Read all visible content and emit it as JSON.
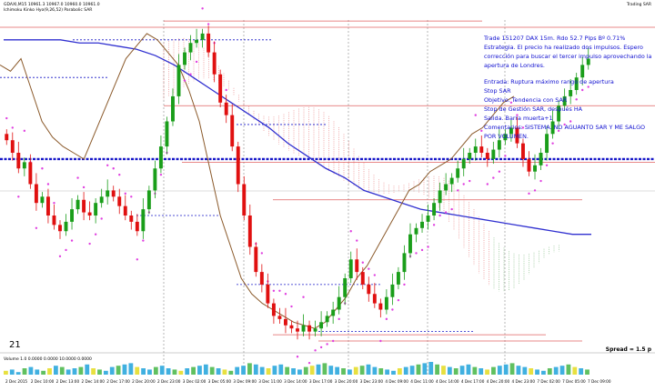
{
  "header": {
    "symbol_line": "GDAXI,M15  10961.3 10967.0 10960.0 10961.0",
    "indicator_line": "Ichimoku Kinko Hyo(9,26,52) Parabolic SAR",
    "right_tag": "Trading SAR"
  },
  "annotation": {
    "line1": "Trade 151207 DAX 15m. Rdo 52.7 Pips Bº 0.71%",
    "line2": "Estrategia. El precio ha realizado dos impulsos. Espero",
    "line3": "corrección para buscar el tercer impulso aprovechando la",
    "line4": "apertura de Londres.",
    "entry": "Entrada: Ruptura máximo rango de apertura",
    "stop": "Stop SAR",
    "objective": "Objetivo. Tendencia con SAR",
    "management": "Stop de Gestión SAR, después HA",
    "exit": "Salida. Barra muerta+1",
    "comments1": "Comentarios: SISTEMA. NO AGUANTO SAR Y ME SALGO",
    "comments2": "POR VOLUMEN."
  },
  "labels": {
    "date_marker": "21",
    "spread": "Spread = 1.5 p",
    "volume_header": "Volume 1.0 0.0000 0.0000 10.0000 0.0000"
  },
  "colors": {
    "background": "#ffffff",
    "bull_candle": "#1a9e1a",
    "bear_candle": "#e01010",
    "ma_line": "#3030d0",
    "chikou_line": "#8b5a2b",
    "sar_dots": "#e040e0",
    "level_blue": "#1818c8",
    "level_red": "#e06060",
    "annotation_text": "#1010d0",
    "cloud_bear": "#e87a7a",
    "cloud_bull": "#7ab87a"
  },
  "chart_data": {
    "type": "candlestick",
    "symbol": "DAX",
    "timeframe": "M15",
    "x_tick_labels": [
      "2 Dec 2015",
      "2 Dec 10:00",
      "2 Dec 13:00",
      "2 Dec 14:00",
      "2 Dec 17:00",
      "2 Dec 20:00",
      "2 Dec 23:00",
      "3 Dec 02:00",
      "3 Dec 05:00",
      "3 Dec 09:00",
      "3 Dec 11:00",
      "3 Dec 14:00",
      "3 Dec 17:00",
      "3 Dec 20:00",
      "3 Dec 23:00",
      "4 Dec 09:00",
      "4 Dec 11:00",
      "4 Dec 14:00",
      "4 Dec 17:00",
      "4 Dec 20:00",
      "4 Dec 23:00",
      "7 Dec 02:00",
      "7 Dec 05:00",
      "7 Dec 09:00"
    ],
    "close_path": [
      64,
      60,
      55,
      57,
      50,
      44,
      46,
      40,
      37,
      35,
      38,
      42,
      45,
      41,
      40,
      44,
      46,
      48,
      46,
      43,
      40,
      38,
      35,
      42,
      48,
      55,
      62,
      70,
      78,
      88,
      92,
      95,
      96,
      98,
      92,
      85,
      76,
      72,
      62,
      50,
      40,
      30,
      22,
      18,
      12,
      8,
      7,
      5,
      4,
      3,
      5,
      3,
      4,
      6,
      8,
      10,
      14,
      20,
      26,
      22,
      18,
      15,
      12,
      10,
      14,
      18,
      22,
      28,
      34,
      36,
      38,
      40,
      44,
      48,
      50,
      52,
      55,
      58,
      60,
      62,
      60,
      58,
      61,
      64,
      66,
      68,
      63,
      58,
      54,
      56,
      60,
      66,
      70,
      75,
      78,
      80,
      84,
      88,
      90
    ],
    "moving_average": [
      96,
      96,
      96,
      96,
      95,
      95,
      94,
      93,
      91,
      88,
      84,
      80,
      76,
      72,
      68,
      63,
      59,
      55,
      52,
      48,
      46,
      44,
      42,
      41,
      40,
      39,
      38,
      37,
      36,
      35,
      34,
      34
    ],
    "chikou_span": [
      88,
      86,
      90,
      80,
      70,
      65,
      62,
      60,
      58,
      66,
      74,
      82,
      90,
      94,
      98,
      96,
      92,
      88,
      80,
      70,
      55,
      40,
      30,
      20,
      15,
      12,
      10,
      8,
      6,
      5,
      4,
      6,
      10,
      14,
      20,
      24,
      30,
      36,
      42,
      48,
      50,
      54,
      56,
      58,
      62,
      66,
      68,
      72,
      76,
      78
    ],
    "level_blue_solid": 58,
    "level_blue_dotted": [
      84,
      69,
      96,
      40,
      18,
      3
    ],
    "level_red": [
      100,
      102,
      75,
      57,
      45,
      0,
      2
    ],
    "volume": [
      3,
      4,
      2,
      5,
      6,
      4,
      3,
      5,
      7,
      6,
      4,
      5,
      6,
      8,
      5,
      4,
      3,
      6,
      7,
      8,
      9,
      6,
      5,
      4,
      6,
      7,
      5,
      4,
      3,
      5,
      6,
      7,
      8,
      6,
      5,
      4,
      3,
      6,
      7,
      9,
      8,
      6,
      5,
      7,
      8,
      6,
      5,
      4,
      6,
      7,
      8,
      9,
      7,
      6,
      5,
      4,
      6,
      7,
      8,
      6,
      5,
      4,
      3,
      5,
      6,
      7,
      8,
      9,
      10,
      8,
      7,
      6,
      5,
      7,
      8,
      6,
      5,
      4,
      6,
      7,
      8,
      9,
      7,
      6,
      5,
      4,
      3,
      5,
      6,
      7,
      8,
      6,
      5,
      4
    ],
    "ylim": [
      0,
      100
    ]
  }
}
